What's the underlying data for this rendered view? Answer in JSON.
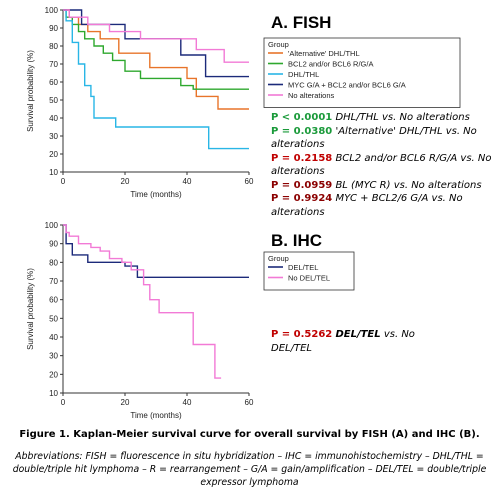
{
  "panel_a": {
    "title": "A. FISH",
    "legend_title": "Group",
    "pvalues": [
      {
        "p": "P < 0.0001",
        "text": "DHL/THL vs. No alterations",
        "color": "green"
      },
      {
        "p": "P = 0.0380",
        "text": "'Alternative' DHL/THL vs. No alterations",
        "color": "green"
      },
      {
        "p": "P = 0.2158",
        "text": "BCL2 and/or BCL6 R/G/A vs. No alterations",
        "color": "red"
      },
      {
        "p": "P = 0.0959",
        "text": "BL (MYC R) vs. No alterations",
        "color": "darkred"
      },
      {
        "p": "P = 0.9924",
        "text": "MYC + BCL2/6 G/A vs. No alterations",
        "color": "darkred"
      }
    ]
  },
  "panel_b": {
    "title": "B. IHC",
    "legend_title": "Group",
    "pvalue": {
      "p": "P = 0.5262",
      "text_bold": "DEL/TEL",
      "text_rest": "vs. No DEL/TEL"
    }
  },
  "caption": "Figure 1. Kaplan-Meier survival curve for overall survival by FISH (A) and IHC (B).",
  "abbreviations": "Abbreviations: FISH = fluorescence in situ hybridization – IHC = immunohistochemistry – DHL/THL = double/triple hit lymphoma – R = rearrangement – G/A = gain/amplification – DEL/TEL = double/triple expressor lymphoma",
  "chart_data": [
    {
      "type": "line",
      "step": true,
      "xlabel": "Time (months)",
      "ylabel": "Survival probability (%)",
      "xlim": [
        0,
        60
      ],
      "ylim": [
        10,
        100
      ],
      "xticks": [
        0,
        20,
        40,
        60
      ],
      "yticks": [
        10,
        20,
        30,
        40,
        50,
        60,
        70,
        80,
        90,
        100
      ],
      "legend_position": "right",
      "series": [
        {
          "name": "'Alternative' DHL/THL",
          "color": "#e8742a",
          "x": [
            0,
            2,
            2,
            5,
            5,
            8,
            8,
            12,
            12,
            18,
            18,
            28,
            28,
            40,
            40,
            43,
            43,
            50,
            50,
            60
          ],
          "y": [
            100,
            100,
            96,
            96,
            92,
            92,
            88,
            88,
            84,
            84,
            76,
            76,
            68,
            68,
            62,
            62,
            52,
            52,
            45,
            45
          ]
        },
        {
          "name": "BCL2 and/or BCL6 R/G/A",
          "color": "#2ea82e",
          "x": [
            0,
            1,
            1,
            3,
            3,
            5,
            5,
            7,
            7,
            10,
            10,
            13,
            13,
            16,
            16,
            20,
            20,
            25,
            25,
            38,
            38,
            42,
            42,
            60
          ],
          "y": [
            100,
            100,
            96,
            96,
            92,
            92,
            88,
            88,
            84,
            84,
            80,
            80,
            76,
            76,
            72,
            72,
            66,
            66,
            62,
            62,
            58,
            58,
            56,
            56
          ]
        },
        {
          "name": "DHL/THL",
          "color": "#29b6e6",
          "x": [
            0,
            1,
            1,
            3,
            3,
            5,
            5,
            7,
            7,
            9,
            9,
            10,
            10,
            17,
            17,
            47,
            47,
            60
          ],
          "y": [
            100,
            100,
            94,
            94,
            82,
            82,
            70,
            70,
            58,
            58,
            52,
            52,
            40,
            40,
            35,
            35,
            23,
            23
          ]
        },
        {
          "name": "MYC G/A + BCL2 and/or BCL6 G/A",
          "color": "#1c2a7a",
          "x": [
            0,
            6,
            6,
            20,
            20,
            38,
            38,
            46,
            46,
            60
          ],
          "y": [
            100,
            100,
            92,
            92,
            84,
            84,
            75,
            75,
            63,
            63
          ]
        },
        {
          "name": "No alterations",
          "color": "#f27ad6",
          "x": [
            0,
            2,
            2,
            8,
            8,
            15,
            15,
            25,
            25,
            43,
            43,
            52,
            52,
            60
          ],
          "y": [
            100,
            100,
            96,
            96,
            92,
            92,
            88,
            88,
            84,
            84,
            78,
            78,
            71,
            71
          ]
        }
      ]
    },
    {
      "type": "line",
      "step": true,
      "xlabel": "Time (months)",
      "ylabel": "Survival probability (%)",
      "xlim": [
        0,
        60
      ],
      "ylim": [
        10,
        100
      ],
      "xticks": [
        0,
        20,
        40,
        60
      ],
      "yticks": [
        10,
        20,
        30,
        40,
        50,
        60,
        70,
        80,
        90,
        100
      ],
      "legend_position": "right",
      "series": [
        {
          "name": "DEL/TEL",
          "color": "#1c2a7a",
          "x": [
            0,
            1,
            1,
            3,
            3,
            8,
            8,
            20,
            20,
            24,
            24,
            60
          ],
          "y": [
            100,
            100,
            90,
            90,
            84,
            84,
            80,
            80,
            78,
            78,
            72,
            72
          ]
        },
        {
          "name": "No DEL/TEL",
          "color": "#f27ad6",
          "x": [
            0,
            1,
            1,
            2,
            2,
            5,
            5,
            9,
            9,
            12,
            12,
            15,
            15,
            19,
            19,
            22,
            22,
            26,
            26,
            28,
            28,
            31,
            31,
            42,
            42,
            49,
            49,
            51
          ],
          "y": [
            100,
            100,
            96,
            96,
            94,
            94,
            90,
            90,
            88,
            88,
            86,
            86,
            82,
            82,
            80,
            80,
            76,
            76,
            68,
            68,
            60,
            60,
            53,
            53,
            36,
            36,
            18,
            18
          ]
        }
      ]
    }
  ]
}
